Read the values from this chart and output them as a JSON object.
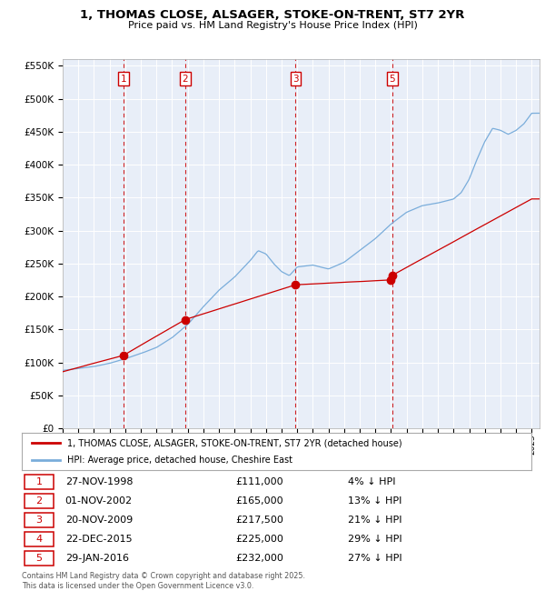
{
  "title": "1, THOMAS CLOSE, ALSAGER, STOKE-ON-TRENT, ST7 2YR",
  "subtitle": "Price paid vs. HM Land Registry's House Price Index (HPI)",
  "ylim": [
    0,
    560000
  ],
  "yticks": [
    0,
    50000,
    100000,
    150000,
    200000,
    250000,
    300000,
    350000,
    400000,
    450000,
    500000,
    550000
  ],
  "ytick_labels": [
    "£0",
    "£50K",
    "£100K",
    "£150K",
    "£200K",
    "£250K",
    "£300K",
    "£350K",
    "£400K",
    "£450K",
    "£500K",
    "£550K"
  ],
  "background_color": "#ffffff",
  "chart_bg_color": "#e8eef8",
  "grid_color": "#ffffff",
  "property_color": "#cc0000",
  "hpi_color": "#7aaddb",
  "legend_property": "1, THOMAS CLOSE, ALSAGER, STOKE-ON-TRENT, ST7 2YR (detached house)",
  "legend_hpi": "HPI: Average price, detached house, Cheshire East",
  "vline_color": "#cc0000",
  "show_label": {
    "1": true,
    "2": true,
    "3": true,
    "4": false,
    "5": true
  },
  "transactions": [
    {
      "num": 1,
      "date_yr": 1998.9,
      "price": 111000
    },
    {
      "num": 2,
      "date_yr": 2002.84,
      "price": 165000
    },
    {
      "num": 3,
      "date_yr": 2009.9,
      "price": 217500
    },
    {
      "num": 4,
      "date_yr": 2015.97,
      "price": 225000
    },
    {
      "num": 5,
      "date_yr": 2016.08,
      "price": 232000
    }
  ],
  "table_rows": [
    {
      "num": 1,
      "date": "27-NOV-1998",
      "price": "£111,000",
      "pct": "4% ↓ HPI"
    },
    {
      "num": 2,
      "date": "01-NOV-2002",
      "price": "£165,000",
      "pct": "13% ↓ HPI"
    },
    {
      "num": 3,
      "date": "20-NOV-2009",
      "price": "£217,500",
      "pct": "21% ↓ HPI"
    },
    {
      "num": 4,
      "date": "22-DEC-2015",
      "price": "£225,000",
      "pct": "29% ↓ HPI"
    },
    {
      "num": 5,
      "date": "29-JAN-2016",
      "price": "£232,000",
      "pct": "27% ↓ HPI"
    }
  ],
  "footnote": "Contains HM Land Registry data © Crown copyright and database right 2025.\nThis data is licensed under the Open Government Licence v3.0."
}
